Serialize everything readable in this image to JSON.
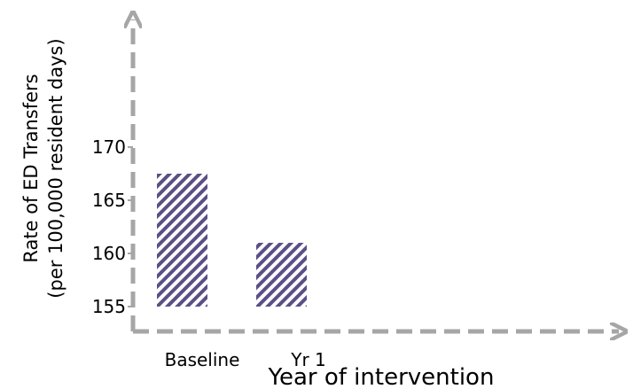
{
  "chart_data": {
    "type": "bar",
    "title": "",
    "xlabel": "Year of intervention",
    "ylabel_line1": "Rate of ED Transfers",
    "ylabel_line2": "(per 100,000 resident days)",
    "categories": [
      "Baseline",
      "Yr 1"
    ],
    "values": [
      167.5,
      161
    ],
    "ylim": [
      155,
      170
    ],
    "yticks": [
      155,
      160,
      165,
      170
    ],
    "ytick_labels": [
      "155",
      "160",
      "165",
      "170"
    ],
    "grid": false,
    "legend": "none",
    "colors": {
      "bar_stripe": "#5b4f86",
      "bar_background": "#ffffff",
      "axis": "#a6a6a6"
    }
  }
}
